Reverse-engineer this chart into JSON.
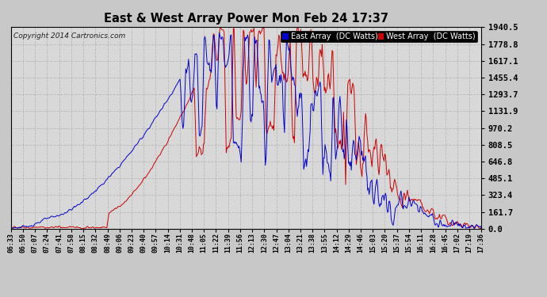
{
  "title": "East & West Array Power Mon Feb 24 17:37",
  "copyright": "Copyright 2014 Cartronics.com",
  "legend_east": "East Array  (DC Watts)",
  "legend_west": "West Array  (DC Watts)",
  "east_color": "#0000cc",
  "west_color": "#cc0000",
  "background_color": "#c8c8c8",
  "plot_bg_color": "#d8d8d8",
  "grid_color": "#bbbbbb",
  "yticks": [
    0.0,
    161.7,
    323.4,
    485.1,
    646.8,
    808.5,
    970.2,
    1131.9,
    1293.7,
    1455.4,
    1617.1,
    1778.8,
    1940.5
  ],
  "ymax": 1940.5,
  "ymin": 0.0,
  "xtick_labels": [
    "06:33",
    "06:50",
    "07:07",
    "07:24",
    "07:41",
    "07:58",
    "08:15",
    "08:32",
    "08:49",
    "09:06",
    "09:23",
    "09:40",
    "09:57",
    "10:14",
    "10:31",
    "10:48",
    "11:05",
    "11:22",
    "11:39",
    "11:56",
    "12:13",
    "12:30",
    "12:47",
    "13:04",
    "13:21",
    "13:38",
    "13:55",
    "14:12",
    "14:29",
    "14:46",
    "15:03",
    "15:20",
    "15:37",
    "15:54",
    "16:11",
    "16:28",
    "16:45",
    "17:02",
    "17:19",
    "17:36"
  ]
}
